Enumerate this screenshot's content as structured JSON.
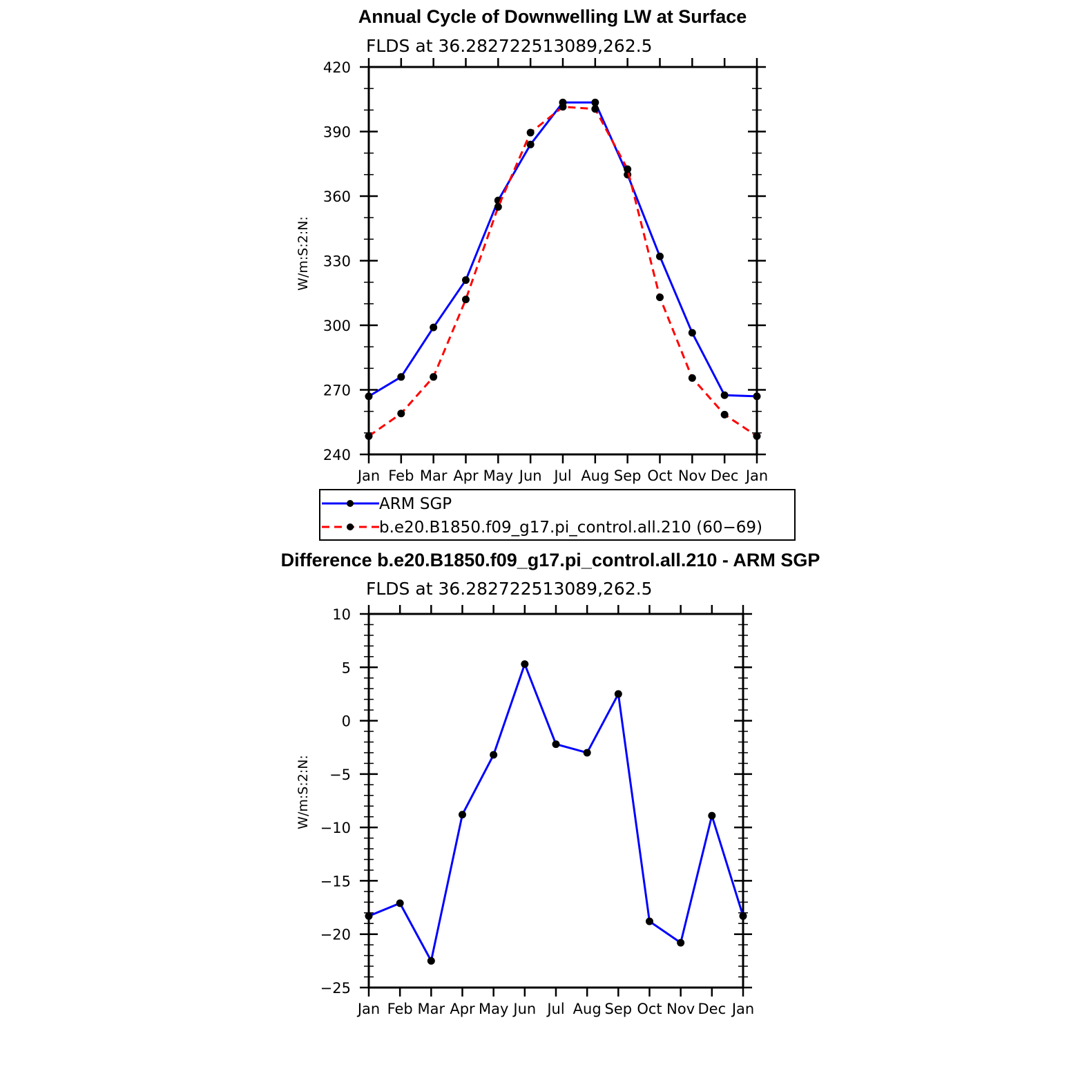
{
  "chart_data": [
    {
      "type": "line",
      "title": "Annual Cycle of Downwelling LW at Surface",
      "subtitle": "FLDS at 36.282722513089,262.5",
      "ylabel": "W/m:S:2:N:",
      "xlabel": "",
      "categories": [
        "Jan",
        "Feb",
        "Mar",
        "Apr",
        "May",
        "Jun",
        "Jul",
        "Aug",
        "Sep",
        "Oct",
        "Nov",
        "Dec",
        "Jan"
      ],
      "ylim": [
        240,
        420
      ],
      "yticks": [
        "240",
        "270",
        "300",
        "330",
        "360",
        "390",
        "420"
      ],
      "series": [
        {
          "name": "ARM SGP",
          "color": "#0000ff",
          "dash": "solid",
          "values": [
            267,
            276,
            299,
            321,
            358,
            384,
            403.5,
            403.5,
            370,
            332,
            296.5,
            267.5,
            267
          ]
        },
        {
          "name": "b.e20.B1850.f09_g17.pi_control.all.210 (60−69)",
          "color": "#ff0000",
          "dash": "dashed",
          "values": [
            248.5,
            259,
            276,
            312,
            355,
            389.5,
            401.5,
            400.5,
            372.5,
            313,
            275.5,
            258.5,
            248.5
          ]
        }
      ],
      "legend": "below"
    },
    {
      "type": "line",
      "title": "Difference b.e20.B1850.f09_g17.pi_control.all.210 - ARM SGP",
      "subtitle": "FLDS at 36.282722513089,262.5",
      "ylabel": "W/m:S:2:N:",
      "xlabel": "",
      "categories": [
        "Jan",
        "Feb",
        "Mar",
        "Apr",
        "May",
        "Jun",
        "Jul",
        "Aug",
        "Sep",
        "Oct",
        "Nov",
        "Dec",
        "Jan"
      ],
      "ylim": [
        -25,
        10
      ],
      "yticks": [
        "−25",
        "−20",
        "−15",
        "−10",
        "−5",
        "0",
        "5",
        "10"
      ],
      "series": [
        {
          "name": "Difference",
          "color": "#0000ff",
          "dash": "solid",
          "values": [
            -18.3,
            -17.1,
            -22.5,
            -8.8,
            -3.2,
            5.3,
            -2.2,
            -3.0,
            2.5,
            -18.8,
            -20.8,
            -8.9,
            -18.3
          ]
        }
      ]
    }
  ]
}
